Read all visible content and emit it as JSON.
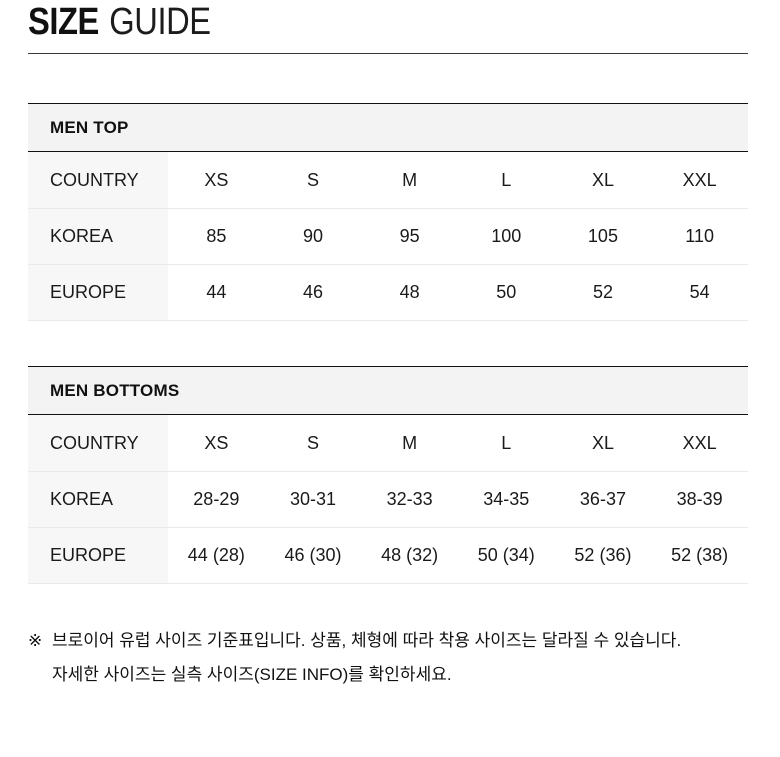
{
  "page": {
    "title": {
      "bold": "SIZE",
      "light": "GUIDE"
    }
  },
  "tables": [
    {
      "name": "MEN TOP",
      "columns": [
        "COUNTRY",
        "XS",
        "S",
        "M",
        "L",
        "XL",
        "XXL"
      ],
      "rows": [
        {
          "label": "KOREA",
          "values": [
            "85",
            "90",
            "95",
            "100",
            "105",
            "110"
          ]
        },
        {
          "label": "EUROPE",
          "values": [
            "44",
            "46",
            "48",
            "50",
            "52",
            "54"
          ]
        }
      ]
    },
    {
      "name": "MEN BOTTOMS",
      "columns": [
        "COUNTRY",
        "XS",
        "S",
        "M",
        "L",
        "XL",
        "XXL"
      ],
      "rows": [
        {
          "label": "KOREA",
          "values": [
            "28-29",
            "30-31",
            "32-33",
            "34-35",
            "36-37",
            "38-39"
          ]
        },
        {
          "label": "EUROPE",
          "values": [
            "44 (28)",
            "46 (30)",
            "48 (32)",
            "50 (34)",
            "52 (36)",
            "52 (38)"
          ]
        }
      ]
    }
  ],
  "footnote": {
    "marker": "※",
    "line1": "브로이어 유럽 사이즈 기준표입니다. 상품, 체형에 따라 착용 사이즈는 달라질 수 있습니다.",
    "line2": "자세한 사이즈는 실측 사이즈(SIZE INFO)를 확인하세요."
  }
}
